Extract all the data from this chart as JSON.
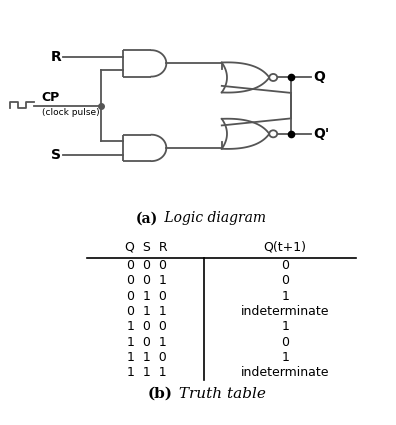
{
  "title_a_bold": "(a)",
  "title_a_normal": " Logic diagram",
  "title_b_bold": "(b)",
  "title_b_normal": " Truth table",
  "table_headers": [
    "Q  S  R",
    "Q(t+1)"
  ],
  "table_rows": [
    [
      "0  0  0",
      "0"
    ],
    [
      "0  0  1",
      "0"
    ],
    [
      "0  1  0",
      "1"
    ],
    [
      "0  1  1",
      "indeterminate"
    ],
    [
      "1  0  0",
      "1"
    ],
    [
      "1  0  1",
      "0"
    ],
    [
      "1  1  0",
      "1"
    ],
    [
      "1  1  1",
      "indeterminate"
    ]
  ],
  "line_color": "#555555",
  "text_color": "#000000",
  "gate_lw": 1.3
}
